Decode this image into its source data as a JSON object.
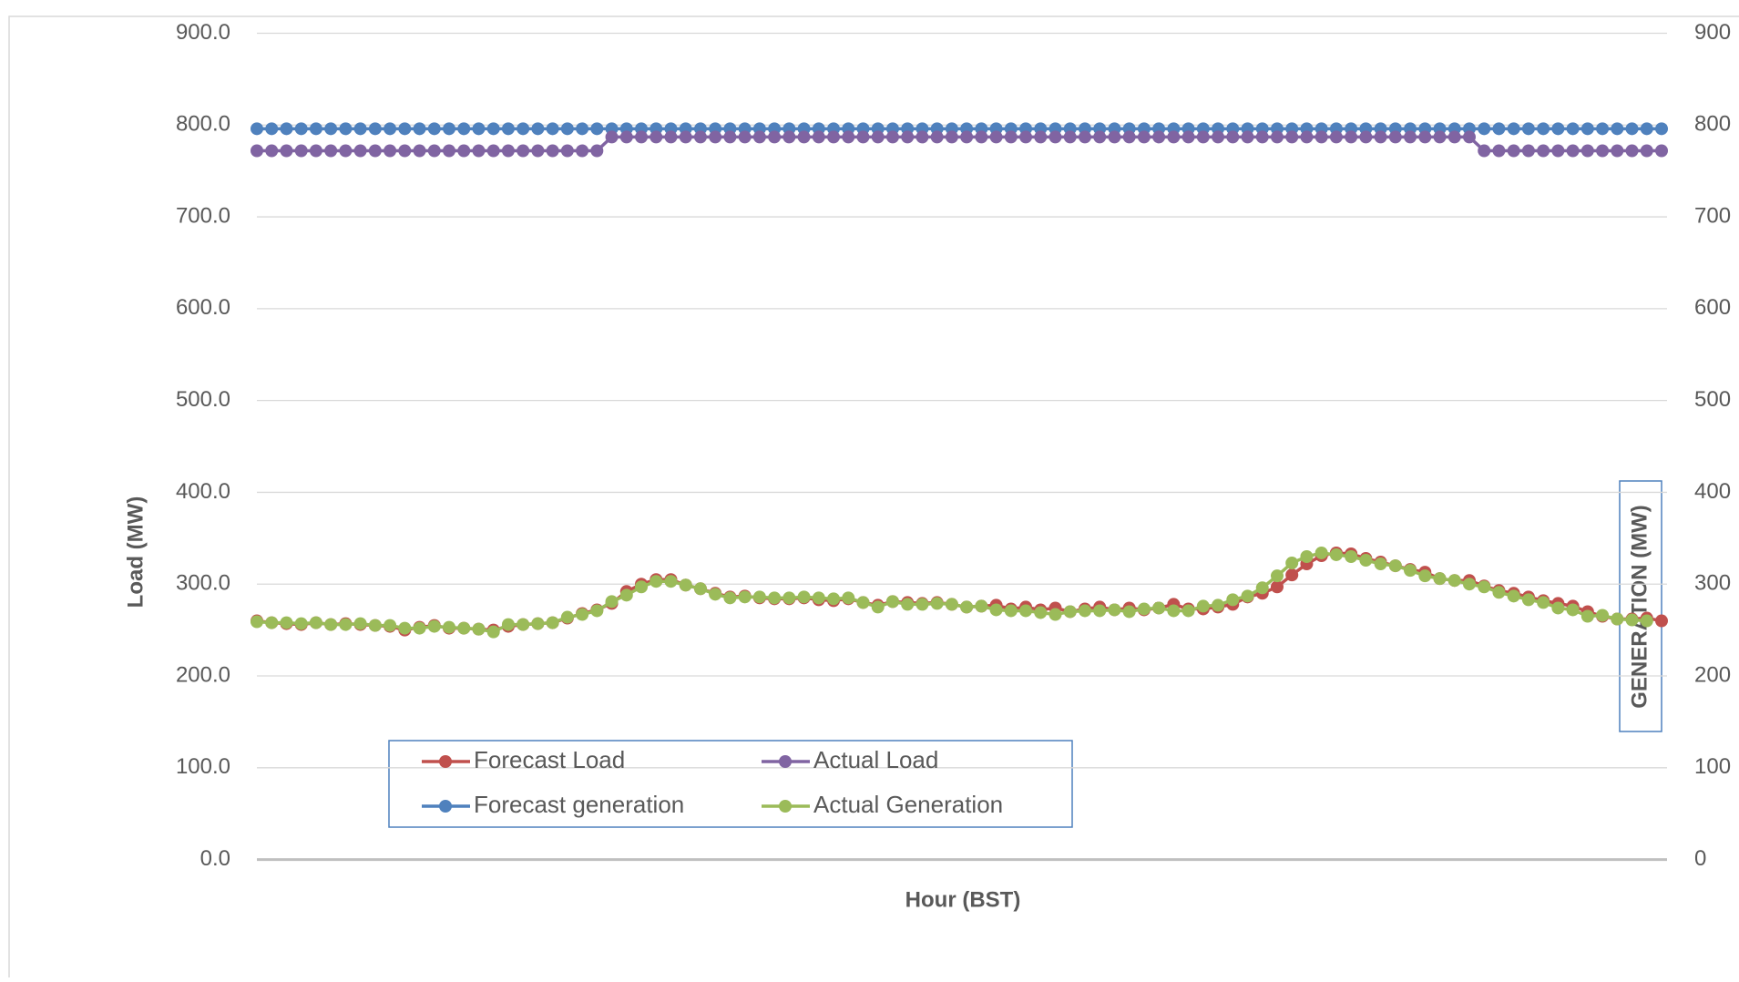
{
  "chart_data": {
    "type": "line",
    "x_label": "Hour (BST)",
    "y_label": "Load (MW)",
    "y2_label": "GENERATION (MW)",
    "categories": [
      null,
      null,
      null,
      null,
      null,
      null,
      null,
      null,
      null,
      null,
      null,
      null,
      null,
      null,
      null,
      null,
      null,
      null,
      null,
      null,
      null,
      null,
      null,
      null,
      null,
      null,
      null,
      null,
      null,
      null,
      null,
      null,
      null,
      null,
      null,
      null,
      null,
      null,
      null,
      null,
      null,
      null,
      null,
      null,
      null,
      null,
      null,
      null,
      null,
      null,
      null,
      null,
      null,
      null,
      null,
      null,
      null,
      null,
      null,
      null,
      null,
      null,
      null,
      null,
      null,
      null,
      null,
      null,
      null,
      null,
      null,
      null,
      null,
      null,
      null,
      null,
      null,
      null,
      null,
      null,
      null,
      null,
      null,
      null,
      null,
      null,
      null,
      null,
      null,
      null,
      null,
      null,
      null,
      null,
      null,
      null
    ],
    "ylim": [
      0,
      900
    ],
    "yticks": [
      {
        "value": 0,
        "label": "0.0"
      },
      {
        "value": 100,
        "label": "100.0"
      },
      {
        "value": 200,
        "label": "200.0"
      },
      {
        "value": 300,
        "label": "300.0"
      },
      {
        "value": 400,
        "label": "400.0"
      },
      {
        "value": 500,
        "label": "500.0"
      },
      {
        "value": 600,
        "label": "600.0"
      },
      {
        "value": 700,
        "label": "700.0"
      },
      {
        "value": 800,
        "label": "800.0"
      },
      {
        "value": 900,
        "label": "900.0"
      }
    ],
    "y2lim": [
      0,
      900
    ],
    "y2ticks": [
      0,
      100,
      200,
      300,
      400,
      500,
      600,
      700,
      800,
      900
    ],
    "grid": true,
    "series": [
      {
        "name": "Forecast generation",
        "color": "#4f81bd",
        "axis": "y2",
        "values": [
          796,
          796,
          796,
          796,
          796,
          796,
          796,
          796,
          796,
          796,
          796,
          796,
          796,
          796,
          796,
          796,
          796,
          796,
          796,
          796,
          796,
          796,
          796,
          796,
          796,
          796,
          796,
          796,
          796,
          796,
          796,
          796,
          796,
          796,
          796,
          796,
          796,
          796,
          796,
          796,
          796,
          796,
          796,
          796,
          796,
          796,
          796,
          796,
          796,
          796,
          796,
          796,
          796,
          796,
          796,
          796,
          796,
          796,
          796,
          796,
          796,
          796,
          796,
          796,
          796,
          796,
          796,
          796,
          796,
          796,
          796,
          796,
          796,
          796,
          796,
          796,
          796,
          796,
          796,
          796,
          796,
          796,
          796,
          796,
          796,
          796,
          796,
          796,
          796,
          796,
          796,
          796,
          796,
          796,
          796,
          796
        ]
      },
      {
        "name": "Actual Load",
        "color": "#8064a2",
        "values": [
          772,
          772,
          772,
          772,
          772,
          772,
          772,
          772,
          772,
          772,
          772,
          772,
          772,
          772,
          772,
          772,
          772,
          772,
          772,
          772,
          772,
          772,
          772,
          772,
          787,
          787,
          787,
          787,
          787,
          787,
          787,
          787,
          787,
          787,
          787,
          787,
          787,
          787,
          787,
          787,
          787,
          787,
          787,
          787,
          787,
          787,
          787,
          787,
          787,
          787,
          787,
          787,
          787,
          787,
          787,
          787,
          787,
          787,
          787,
          787,
          787,
          787,
          787,
          787,
          787,
          787,
          787,
          787,
          787,
          787,
          787,
          787,
          787,
          787,
          787,
          787,
          787,
          787,
          787,
          787,
          787,
          787,
          787,
          772,
          772,
          772,
          772,
          772,
          772,
          772,
          772,
          772,
          772,
          772,
          772,
          772
        ]
      },
      {
        "name": "Forecast Load",
        "color": "#c0504d",
        "values": [
          260,
          258,
          257,
          256,
          258,
          256,
          257,
          256,
          255,
          254,
          250,
          253,
          255,
          252,
          252,
          251,
          250,
          254,
          256,
          257,
          258,
          263,
          268,
          272,
          279,
          292,
          300,
          305,
          305,
          299,
          295,
          290,
          286,
          287,
          285,
          284,
          284,
          285,
          283,
          282,
          284,
          280,
          277,
          281,
          280,
          279,
          280,
          278,
          275,
          276,
          277,
          273,
          275,
          272,
          274,
          270,
          273,
          275,
          272,
          274,
          272,
          274,
          278,
          273,
          273,
          275,
          278,
          286,
          290,
          297,
          310,
          322,
          331,
          334,
          333,
          328,
          324,
          320,
          316,
          313,
          306,
          304,
          304,
          298,
          293,
          290,
          286,
          282,
          279,
          276,
          270,
          265,
          262,
          262,
          263,
          260
        ]
      },
      {
        "name": "Actual Generation",
        "color": "#9bbb59",
        "axis": "y2",
        "values": [
          259,
          258,
          258,
          257,
          258,
          256,
          256,
          257,
          255,
          255,
          252,
          252,
          254,
          253,
          252,
          251,
          248,
          256,
          256,
          257,
          258,
          264,
          267,
          271,
          281,
          288,
          297,
          303,
          303,
          299,
          295,
          289,
          285,
          286,
          286,
          285,
          285,
          286,
          285,
          284,
          285,
          280,
          275,
          281,
          278,
          278,
          279,
          278,
          275,
          276,
          272,
          271,
          271,
          269,
          267,
          270,
          271,
          271,
          272,
          270,
          273,
          274,
          271,
          271,
          276,
          277,
          283,
          287,
          296,
          309,
          323,
          330,
          334,
          332,
          330,
          326,
          322,
          320,
          315,
          309,
          306,
          304,
          300,
          297,
          291,
          287,
          283,
          280,
          274,
          272,
          265,
          266,
          262,
          261,
          260,
          null
        ]
      }
    ]
  }
}
